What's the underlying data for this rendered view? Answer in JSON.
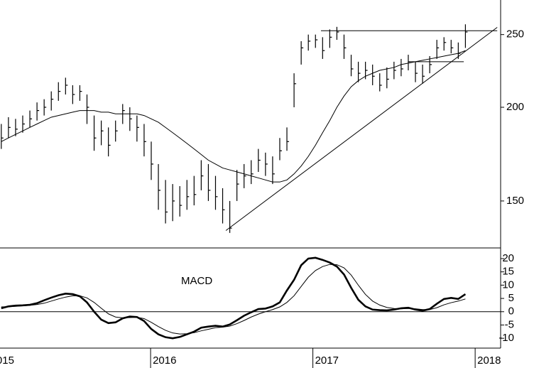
{
  "chart_data": [
    {
      "type": "ohlc",
      "log_scale": true,
      "color": "#000000",
      "x": [
        2015.08,
        2015.124,
        2015.168,
        2015.212,
        2015.256,
        2015.3,
        2015.344,
        2015.388,
        2015.432,
        2015.476,
        2015.52,
        2015.564,
        2015.608,
        2015.652,
        2015.696,
        2015.74,
        2015.784,
        2015.828,
        2015.872,
        2015.916,
        2015.96,
        2016.004,
        2016.048,
        2016.092,
        2016.136,
        2016.18,
        2016.224,
        2016.268,
        2016.312,
        2016.356,
        2016.4,
        2016.444,
        2016.488,
        2016.532,
        2016.576,
        2016.62,
        2016.664,
        2016.708,
        2016.752,
        2016.796,
        2016.84,
        2016.884,
        2016.928,
        2016.972,
        2017.016,
        2017.06,
        2017.104,
        2017.148,
        2017.192,
        2017.236,
        2017.28,
        2017.324,
        2017.368,
        2017.412,
        2017.456,
        2017.5,
        2017.544,
        2017.588,
        2017.632,
        2017.676,
        2017.72,
        2017.764,
        2017.808,
        2017.852,
        2017.896,
        2017.94
      ],
      "high": [
        190,
        194,
        193,
        195,
        198,
        203,
        205,
        210,
        216,
        219,
        214,
        214,
        208,
        195,
        192,
        188,
        192,
        202,
        200,
        195,
        190,
        180,
        168,
        160,
        158,
        157,
        160,
        162,
        170,
        168,
        162,
        156,
        150,
        165,
        168,
        170,
        176,
        174,
        172,
        182,
        188,
        222,
        245,
        250,
        250,
        248,
        254,
        256,
        250,
        235,
        230,
        230,
        228,
        222,
        226,
        230,
        232,
        235,
        230,
        228,
        234,
        246,
        248,
        246,
        244,
        258
      ],
      "low": [
        176,
        182,
        183,
        185,
        188,
        192,
        195,
        198,
        204,
        208,
        202,
        204,
        190,
        175,
        178,
        172,
        180,
        190,
        186,
        180,
        172,
        160,
        146,
        140,
        141,
        143,
        146,
        148,
        155,
        150,
        146,
        140,
        136,
        150,
        156,
        158,
        164,
        162,
        158,
        170,
        175,
        200,
        228,
        238,
        240,
        232,
        240,
        246,
        232,
        220,
        216,
        218,
        214,
        210,
        212,
        218,
        220,
        224,
        216,
        215,
        222,
        232,
        238,
        236,
        232,
        240
      ],
      "close": [
        182,
        188,
        187,
        190,
        193,
        198,
        200,
        205,
        210,
        214,
        208,
        210,
        200,
        182,
        186,
        178,
        186,
        198,
        193,
        188,
        180,
        168,
        155,
        145,
        150,
        148,
        152,
        153,
        162,
        155,
        152,
        146,
        138,
        158,
        162,
        163,
        170,
        168,
        163,
        175,
        180,
        215,
        240,
        245,
        246,
        238,
        248,
        252,
        240,
        225,
        222,
        224,
        220,
        214,
        218,
        224,
        225,
        230,
        222,
        220,
        228,
        240,
        244,
        240,
        236,
        252
      ],
      "moving_average": [
        180,
        182,
        184,
        186,
        188,
        190,
        192,
        194,
        195,
        196,
        197,
        198,
        198,
        198,
        197,
        197,
        196,
        196,
        196,
        196,
        195,
        193,
        191,
        188,
        185,
        182,
        179,
        176,
        173,
        170,
        168,
        166,
        165,
        164,
        163,
        162,
        161,
        160,
        159,
        159,
        160,
        163,
        167,
        172,
        178,
        185,
        192,
        200,
        207,
        213,
        217,
        220,
        222,
        224,
        225,
        226,
        228,
        229,
        230,
        231,
        232,
        233,
        234,
        235,
        236,
        238
      ],
      "lines": [
        {
          "x": [
            2016.464,
            2018.136
          ],
          "y": [
            137,
            255.6
          ]
        },
        {
          "x": [
            2017.05,
            2018.136
          ],
          "y": [
            253,
            253
          ]
        },
        {
          "x": [
            2017.589,
            2017.93
          ],
          "y": [
            230,
            230
          ]
        }
      ],
      "xlim": [
        2015.072,
        2018.157
      ],
      "ylim": [
        131,
        278
      ],
      "yticks": [
        150,
        200,
        250
      ]
    },
    {
      "type": "line",
      "label": "MACD",
      "color": "#000000",
      "macd": [
        1.3,
        2,
        2.3,
        2.4,
        2.6,
        3.2,
        4.3,
        5.3,
        6.2,
        6.8,
        6.6,
        5.8,
        3.5,
        0,
        -3,
        -4.3,
        -4,
        -2.5,
        -1.8,
        -2,
        -3.5,
        -6.5,
        -8.5,
        -9.6,
        -10,
        -9.5,
        -8.5,
        -7.5,
        -6,
        -5.6,
        -5.3,
        -5.6,
        -4.8,
        -3.2,
        -1.5,
        -0.2,
        1,
        1.2,
        2,
        3.5,
        8,
        12,
        17.5,
        20,
        20.3,
        19.5,
        18.5,
        17,
        14,
        9,
        4.5,
        2,
        0.8,
        0.6,
        0.5,
        0.8,
        1.3,
        1.5,
        0.8,
        0.4,
        1,
        3,
        4.8,
        5.2,
        4.8,
        6.6
      ],
      "signal": [
        1.8,
        1.9,
        2,
        2.2,
        2.4,
        2.7,
        3.2,
        4,
        4.8,
        5.5,
        6,
        6,
        5.2,
        3.5,
        1.3,
        -0.8,
        -2,
        -2.3,
        -2.2,
        -2.1,
        -2.6,
        -4,
        -5.6,
        -7,
        -8,
        -8.4,
        -8.3,
        -7.9,
        -7.2,
        -6.6,
        -6,
        -5.8,
        -5.4,
        -4.5,
        -3.3,
        -2,
        -0.9,
        0,
        0.8,
        1.8,
        3.5,
        6,
        9.5,
        13,
        15.5,
        17,
        17.8,
        17.7,
        16.5,
        13.8,
        10,
        6.5,
        4,
        2.5,
        1.6,
        1.2,
        1.1,
        1.2,
        1.1,
        0.8,
        0.8,
        1.5,
        2.6,
        3.4,
        4,
        4.8
      ],
      "zero_line": true,
      "xlim": [
        2015.072,
        2018.157
      ],
      "xticks": [
        2015,
        2016,
        2017,
        2018
      ],
      "ylim": [
        -13.7,
        23.2
      ],
      "yticks": [
        -10,
        -5,
        0,
        5,
        10,
        15,
        20
      ]
    }
  ]
}
